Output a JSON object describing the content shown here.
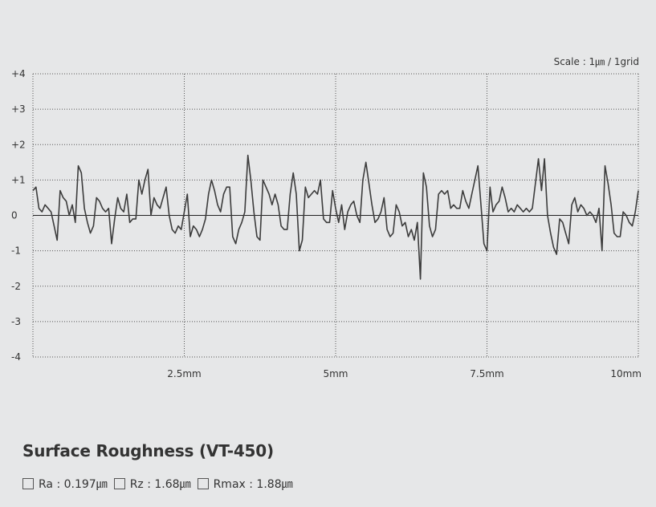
{
  "chart_data": {
    "type": "line",
    "title": "Surface Roughness (VT-450)",
    "scale_note": "Scale : 1㎛ / 1grid",
    "xlabel": "",
    "ylabel": "",
    "xlim": [
      0,
      10
    ],
    "ylim": [
      -4,
      4
    ],
    "y_ticks": [
      "+4",
      "+3",
      "+2",
      "+1",
      "0",
      "-1",
      "-2",
      "-3",
      "-4"
    ],
    "x_ticks": [
      "2.5mm",
      "5mm",
      "7.5mm",
      "10mm"
    ],
    "grid": true,
    "series": [
      {
        "values_desc": "profile heights in ㎛ at x in mm",
        "x": [
          0.0,
          0.05,
          0.1,
          0.15,
          0.2,
          0.25,
          0.3,
          0.35,
          0.4,
          0.45,
          0.5,
          0.55,
          0.6,
          0.65,
          0.7,
          0.75,
          0.8,
          0.85,
          0.9,
          0.95,
          1.0,
          1.05,
          1.1,
          1.15,
          1.2,
          1.25,
          1.3,
          1.35,
          1.4,
          1.45,
          1.5,
          1.55,
          1.6,
          1.65,
          1.7,
          1.75,
          1.8,
          1.85,
          1.9,
          1.95,
          2.0,
          2.05,
          2.1,
          2.15,
          2.2,
          2.25,
          2.3,
          2.35,
          2.4,
          2.45,
          2.5,
          2.55,
          2.6,
          2.65,
          2.7,
          2.75,
          2.8,
          2.85,
          2.9,
          2.95,
          3.0,
          3.05,
          3.1,
          3.15,
          3.2,
          3.25,
          3.3,
          3.35,
          3.4,
          3.45,
          3.5,
          3.55,
          3.6,
          3.65,
          3.7,
          3.75,
          3.8,
          3.85,
          3.9,
          3.95,
          4.0,
          4.05,
          4.1,
          4.15,
          4.2,
          4.25,
          4.3,
          4.35,
          4.4,
          4.45,
          4.5,
          4.55,
          4.6,
          4.65,
          4.7,
          4.75,
          4.8,
          4.85,
          4.9,
          4.95,
          5.0,
          5.05,
          5.1,
          5.15,
          5.2,
          5.25,
          5.3,
          5.35,
          5.4,
          5.45,
          5.5,
          5.55,
          5.6,
          5.65,
          5.7,
          5.75,
          5.8,
          5.85,
          5.9,
          5.95,
          6.0,
          6.05,
          6.1,
          6.15,
          6.2,
          6.25,
          6.3,
          6.35,
          6.4,
          6.45,
          6.5,
          6.55,
          6.6,
          6.65,
          6.7,
          6.75,
          6.8,
          6.85,
          6.9,
          6.95,
          7.0,
          7.05,
          7.1,
          7.15,
          7.2,
          7.25,
          7.3,
          7.35,
          7.4,
          7.45,
          7.5,
          7.55,
          7.6,
          7.65,
          7.7,
          7.75,
          7.8,
          7.85,
          7.9,
          7.95,
          8.0,
          8.05,
          8.1,
          8.15,
          8.2,
          8.25,
          8.3,
          8.35,
          8.4,
          8.45,
          8.5,
          8.55,
          8.6,
          8.65,
          8.7,
          8.75,
          8.8,
          8.85,
          8.9,
          8.95,
          9.0,
          9.05,
          9.1,
          9.15,
          9.2,
          9.25,
          9.3,
          9.35,
          9.4,
          9.45,
          9.5,
          9.55,
          9.6,
          9.65,
          9.7,
          9.75,
          9.8,
          9.85,
          9.9,
          9.95,
          10.0
        ],
        "y": [
          0.7,
          0.8,
          0.2,
          0.1,
          0.3,
          0.2,
          0.1,
          -0.3,
          -0.7,
          0.7,
          0.5,
          0.4,
          0.0,
          0.3,
          -0.2,
          1.4,
          1.2,
          0.2,
          -0.2,
          -0.5,
          -0.3,
          0.5,
          0.4,
          0.2,
          0.1,
          0.2,
          -0.8,
          -0.1,
          0.5,
          0.2,
          0.1,
          0.6,
          -0.2,
          -0.1,
          -0.1,
          1.0,
          0.6,
          1.0,
          1.3,
          0.0,
          0.5,
          0.3,
          0.2,
          0.5,
          0.8,
          0.0,
          -0.4,
          -0.5,
          -0.3,
          -0.4,
          0.1,
          0.6,
          -0.6,
          -0.3,
          -0.4,
          -0.6,
          -0.4,
          -0.1,
          0.6,
          1.0,
          0.7,
          0.3,
          0.1,
          0.6,
          0.8,
          0.8,
          -0.6,
          -0.8,
          -0.4,
          -0.2,
          0.1,
          1.7,
          1.0,
          0.1,
          -0.6,
          -0.7,
          1.0,
          0.8,
          0.6,
          0.3,
          0.6,
          0.3,
          -0.3,
          -0.4,
          -0.4,
          0.6,
          1.2,
          0.6,
          -1.0,
          -0.7,
          0.8,
          0.5,
          0.6,
          0.7,
          0.6,
          1.0,
          -0.1,
          -0.2,
          -0.2,
          0.7,
          0.2,
          -0.2,
          0.3,
          -0.4,
          0.1,
          0.3,
          0.4,
          0.0,
          -0.2,
          1.0,
          1.5,
          0.9,
          0.3,
          -0.2,
          -0.1,
          0.1,
          0.5,
          -0.4,
          -0.6,
          -0.5,
          0.3,
          0.1,
          -0.3,
          -0.2,
          -0.6,
          -0.4,
          -0.7,
          -0.2,
          -1.8,
          1.2,
          0.8,
          -0.3,
          -0.6,
          -0.4,
          0.6,
          0.7,
          0.6,
          0.7,
          0.2,
          0.3,
          0.2,
          0.2,
          0.7,
          0.4,
          0.2,
          0.6,
          1.0,
          1.4,
          0.3,
          -0.8,
          -1.0,
          0.8,
          0.1,
          0.3,
          0.4,
          0.8,
          0.5,
          0.1,
          0.2,
          0.1,
          0.3,
          0.2,
          0.1,
          0.2,
          0.1,
          0.2,
          0.9,
          1.6,
          0.7,
          1.6,
          0.0,
          -0.5,
          -0.9,
          -1.1,
          -0.1,
          -0.2,
          -0.5,
          -0.8,
          0.3,
          0.5,
          0.1,
          0.3,
          0.2,
          0.0,
          0.1,
          0.0,
          -0.2,
          0.2,
          -1.0,
          1.4,
          0.9,
          0.3,
          -0.5,
          -0.6,
          -0.6,
          0.1,
          0.0,
          -0.2,
          -0.3,
          0.1,
          0.7
        ]
      }
    ]
  },
  "metrics": [
    {
      "label": "Ra : 0.197㎛"
    },
    {
      "label": "Rz : 1.68㎛"
    },
    {
      "label": "Rmax : 1.88㎛"
    }
  ],
  "colors": {
    "background": "#e6e7e8",
    "line": "#3c3c3c",
    "grid": "#555555",
    "zero_line": "#222222"
  }
}
